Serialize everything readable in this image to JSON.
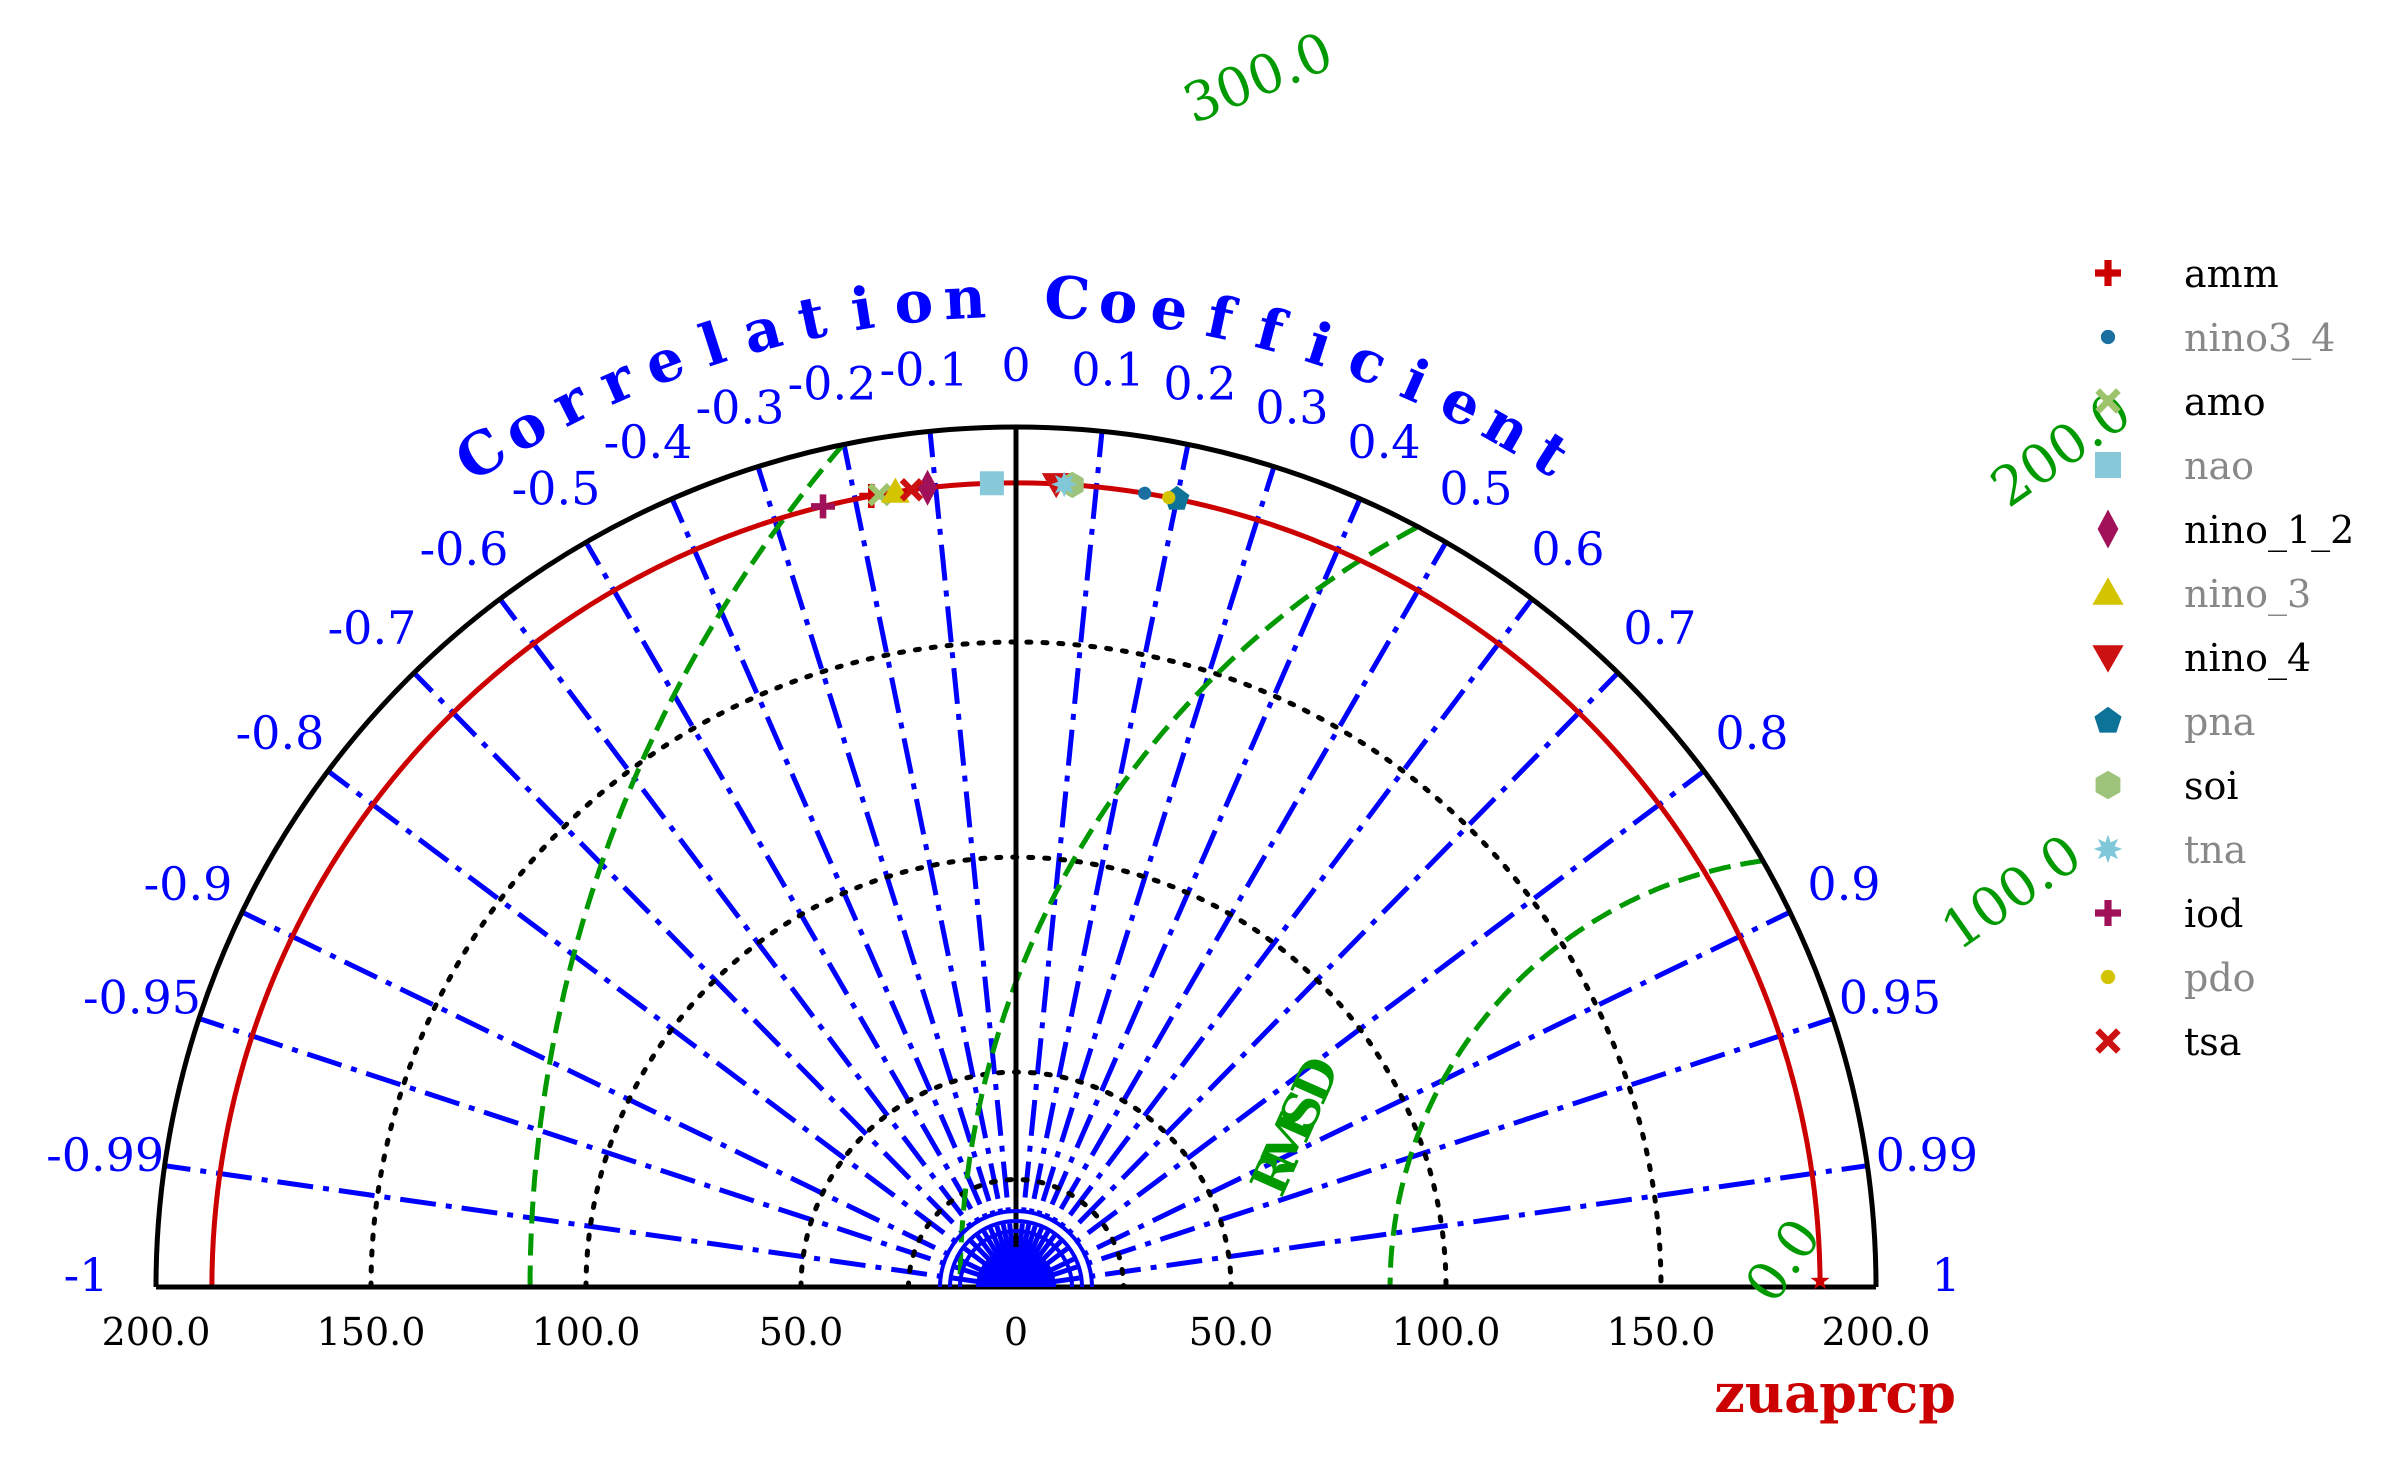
{
  "chart_data": {
    "type": "taylor",
    "reference_name": "zuaprcp",
    "colors": {
      "axis": "#000000",
      "correlation": "#0000ff",
      "rmsd": "#009900",
      "reference": "#cc0000"
    },
    "correlation_axis_title": "Correlation Coefficient",
    "rmsd_axis_title": "RMSD",
    "std_range": [
      0,
      200
    ],
    "std_ticks": [
      {
        "value": -200,
        "label": "200.0"
      },
      {
        "value": -150,
        "label": "150.0"
      },
      {
        "value": -100,
        "label": "100.0"
      },
      {
        "value": -50,
        "label": "50.0"
      },
      {
        "value": 0,
        "label": "0"
      },
      {
        "value": 50,
        "label": "50.0"
      },
      {
        "value": 100,
        "label": "100.0"
      },
      {
        "value": 150,
        "label": "150.0"
      },
      {
        "value": 200,
        "label": "200.0"
      }
    ],
    "std_contours": [
      25,
      50,
      100,
      150
    ],
    "reference_std": 187,
    "correlation_ticks": [
      {
        "value": -1,
        "label": "-1"
      },
      {
        "value": -0.99,
        "label": "-0.99"
      },
      {
        "value": -0.95,
        "label": "-0.95"
      },
      {
        "value": -0.9,
        "label": "-0.9"
      },
      {
        "value": -0.8,
        "label": "-0.8"
      },
      {
        "value": -0.7,
        "label": "-0.7"
      },
      {
        "value": -0.6,
        "label": "-0.6"
      },
      {
        "value": -0.5,
        "label": "-0.5"
      },
      {
        "value": -0.4,
        "label": "-0.4"
      },
      {
        "value": -0.3,
        "label": "-0.3"
      },
      {
        "value": -0.2,
        "label": "-0.2"
      },
      {
        "value": -0.1,
        "label": "-0.1"
      },
      {
        "value": 0,
        "label": "0"
      },
      {
        "value": 0.1,
        "label": "0.1"
      },
      {
        "value": 0.2,
        "label": "0.2"
      },
      {
        "value": 0.3,
        "label": "0.3"
      },
      {
        "value": 0.4,
        "label": "0.4"
      },
      {
        "value": 0.5,
        "label": "0.5"
      },
      {
        "value": 0.6,
        "label": "0.6"
      },
      {
        "value": 0.7,
        "label": "0.7"
      },
      {
        "value": 0.8,
        "label": "0.8"
      },
      {
        "value": 0.9,
        "label": "0.9"
      },
      {
        "value": 0.95,
        "label": "0.95"
      },
      {
        "value": 0.99,
        "label": "0.99"
      },
      {
        "value": 1,
        "label": "1"
      }
    ],
    "rmsd_contours": [
      {
        "value": 0,
        "label": "0.0"
      },
      {
        "value": 100,
        "label": "100.0"
      },
      {
        "value": 200,
        "label": "200.0"
      },
      {
        "value": 300,
        "label": "300.0"
      }
    ],
    "series": [
      {
        "name": "amm",
        "std": 187,
        "corr": -0.18,
        "marker": "plus",
        "color": "#cc0000",
        "label_color": "#000000"
      },
      {
        "name": "nino3_4",
        "std": 187,
        "corr": 0.16,
        "marker": "circle",
        "color": "#1a6fa0",
        "label_color": "#888888"
      },
      {
        "name": "amo",
        "std": 187,
        "corr": -0.17,
        "marker": "x",
        "color": "#9dc46a",
        "label_color": "#000000"
      },
      {
        "name": "nao",
        "std": 187,
        "corr": -0.03,
        "marker": "square",
        "color": "#87c9d9",
        "label_color": "#888888"
      },
      {
        "name": "nino_1_2",
        "std": 187,
        "corr": -0.11,
        "marker": "diamond",
        "color": "#a0115a",
        "label_color": "#000000"
      },
      {
        "name": "nino_3",
        "std": 187,
        "corr": -0.15,
        "marker": "triangle-up",
        "color": "#d4c400",
        "label_color": "#888888"
      },
      {
        "name": "nino_4",
        "std": 187,
        "corr": 0.05,
        "marker": "triangle-down",
        "color": "#cc1111",
        "label_color": "#000000"
      },
      {
        "name": "pna",
        "std": 187,
        "corr": 0.2,
        "marker": "pentagon",
        "color": "#0e7399",
        "label_color": "#888888"
      },
      {
        "name": "soi",
        "std": 187,
        "corr": 0.07,
        "marker": "hexagon",
        "color": "#9dc47a",
        "label_color": "#000000"
      },
      {
        "name": "tna",
        "std": 187,
        "corr": 0.06,
        "marker": "star",
        "color": "#7fc7d9",
        "label_color": "#888888"
      },
      {
        "name": "iod",
        "std": 187,
        "corr": -0.24,
        "marker": "plus",
        "color": "#a0115a",
        "label_color": "#000000"
      },
      {
        "name": "pdo",
        "std": 187,
        "corr": 0.19,
        "marker": "circle",
        "color": "#d4c400",
        "label_color": "#888888"
      },
      {
        "name": "tsa",
        "std": 187,
        "corr": -0.13,
        "marker": "x",
        "color": "#cc1111",
        "label_color": "#000000"
      }
    ]
  }
}
